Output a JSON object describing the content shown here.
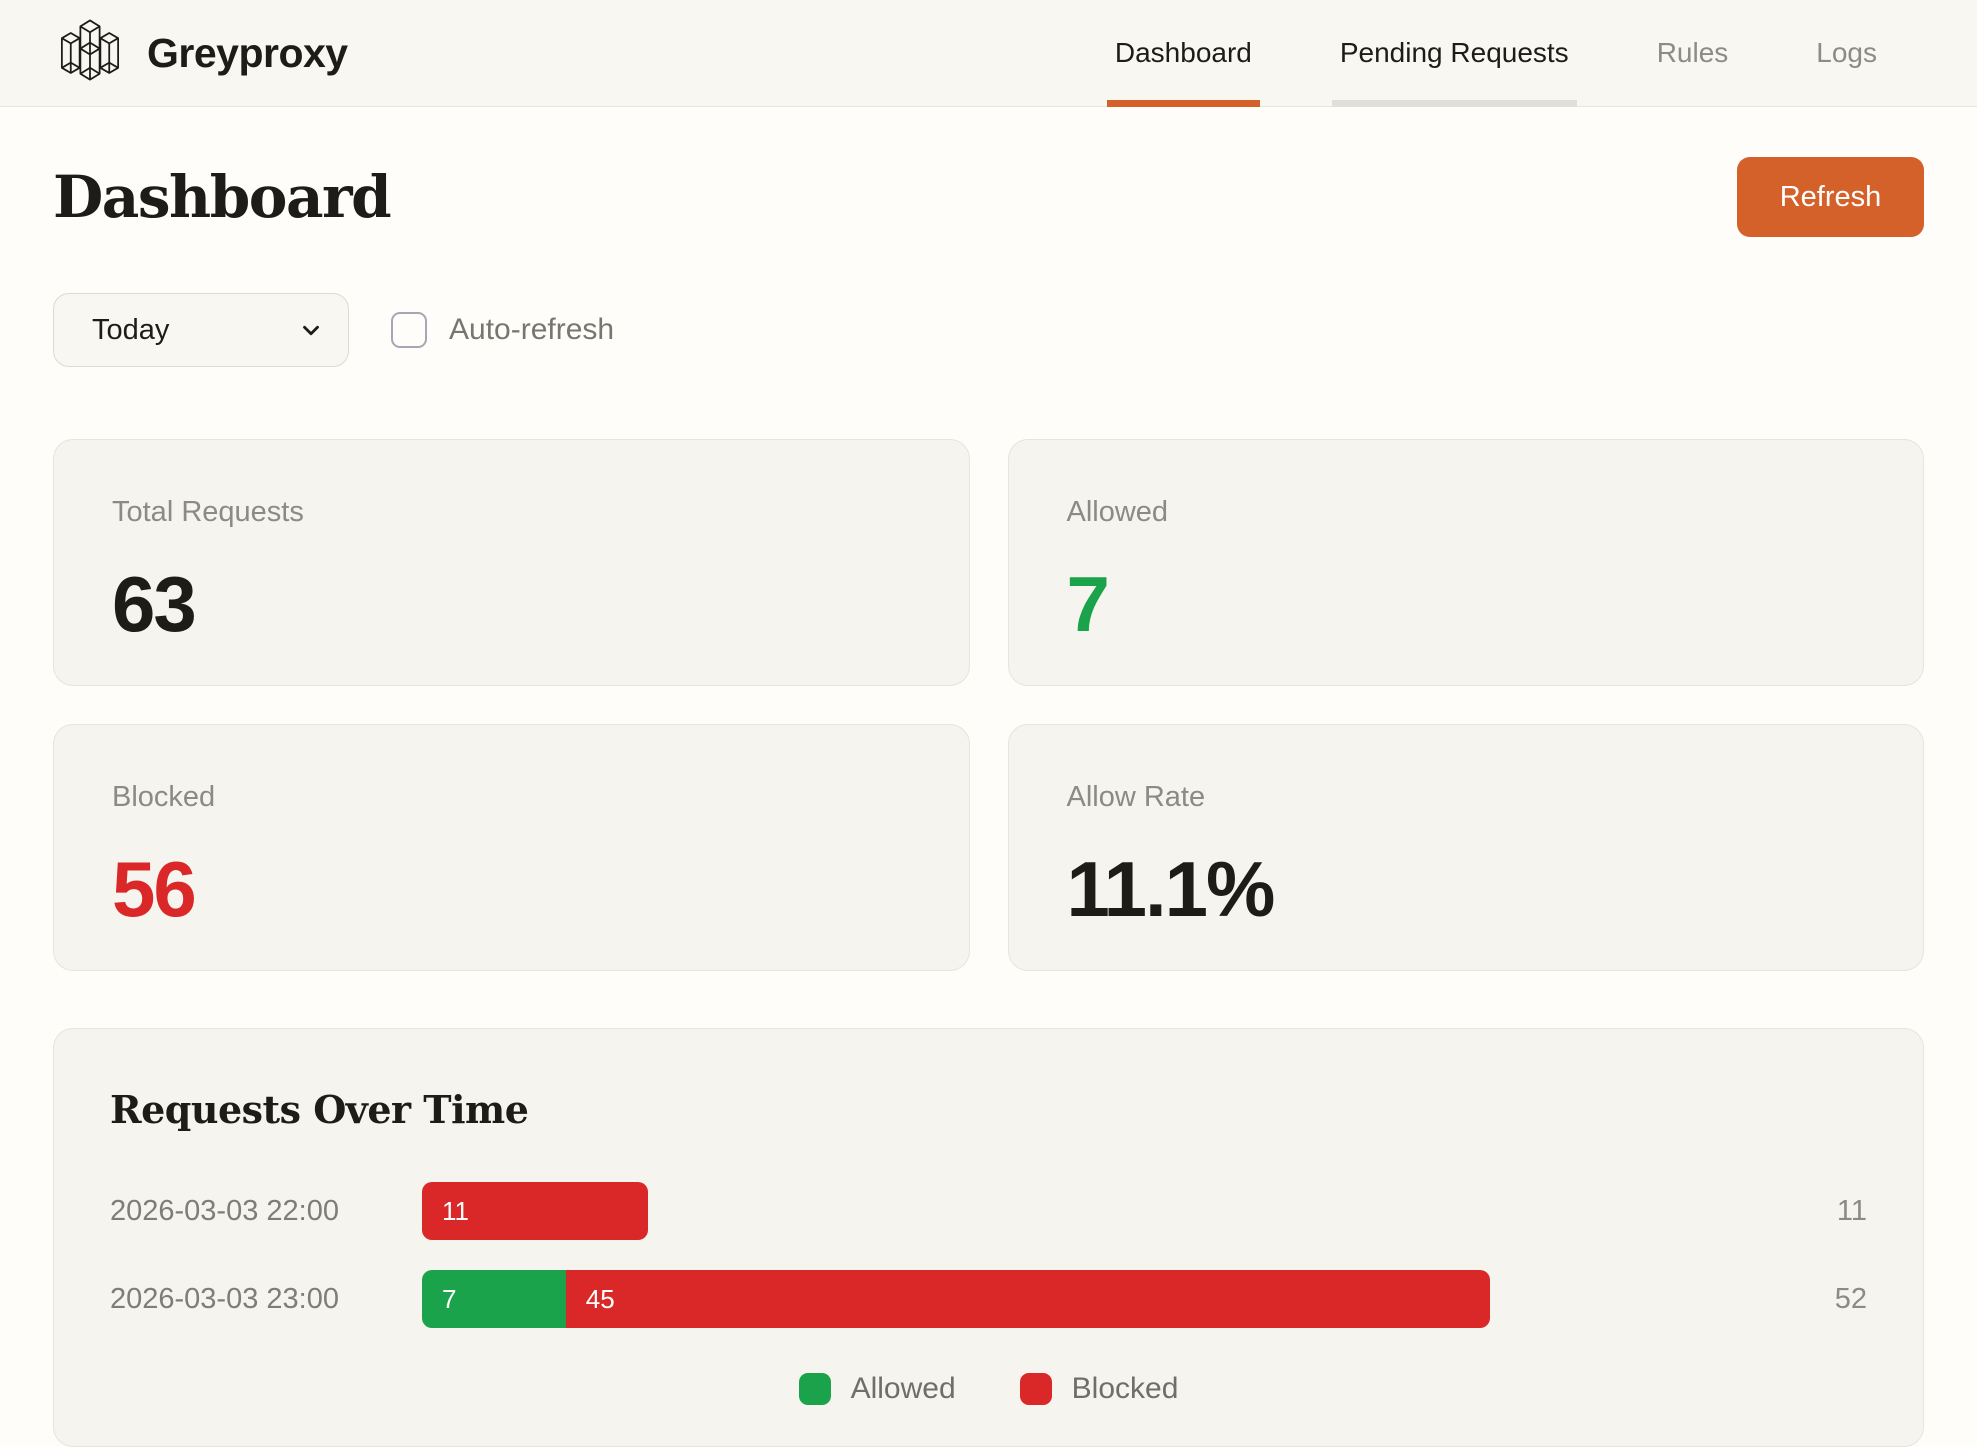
{
  "brand": {
    "name": "Greyproxy"
  },
  "nav": {
    "tabs": [
      {
        "label": "Dashboard",
        "active": true
      },
      {
        "label": "Pending Requests",
        "active": false
      },
      {
        "label": "Rules",
        "active": false
      },
      {
        "label": "Logs",
        "active": false
      }
    ]
  },
  "page": {
    "title": "Dashboard"
  },
  "toolbar": {
    "refresh_label": "Refresh"
  },
  "controls": {
    "time_range": {
      "value": "Today"
    },
    "auto_refresh": {
      "label": "Auto-refresh",
      "checked": false
    }
  },
  "stats": [
    {
      "label": "Total Requests",
      "value": "63",
      "color": "#1d1c18"
    },
    {
      "label": "Allowed",
      "value": "7",
      "color": "#1aa34a"
    },
    {
      "label": "Blocked",
      "value": "56",
      "color": "#da2727"
    },
    {
      "label": "Allow Rate",
      "value": "11.1%",
      "color": "#1d1c18"
    }
  ],
  "chart_data": {
    "type": "bar",
    "orientation": "horizontal",
    "title": "Requests Over Time",
    "categories": [
      "2026-03-03 22:00",
      "2026-03-03 23:00"
    ],
    "series": [
      {
        "name": "Allowed",
        "values": [
          0,
          7
        ]
      },
      {
        "name": "Blocked",
        "values": [
          11,
          45
        ]
      }
    ],
    "totals": [
      11,
      52
    ],
    "colors": {
      "Allowed": "#1aa34a",
      "Blocked": "#da2727"
    },
    "legend": [
      "Allowed",
      "Blocked"
    ],
    "legend_position": "bottom",
    "bar_scale_fraction": 0.78
  },
  "colors": {
    "accent_orange": "#d4602a",
    "green": "#1aa34a",
    "red": "#da2727"
  }
}
